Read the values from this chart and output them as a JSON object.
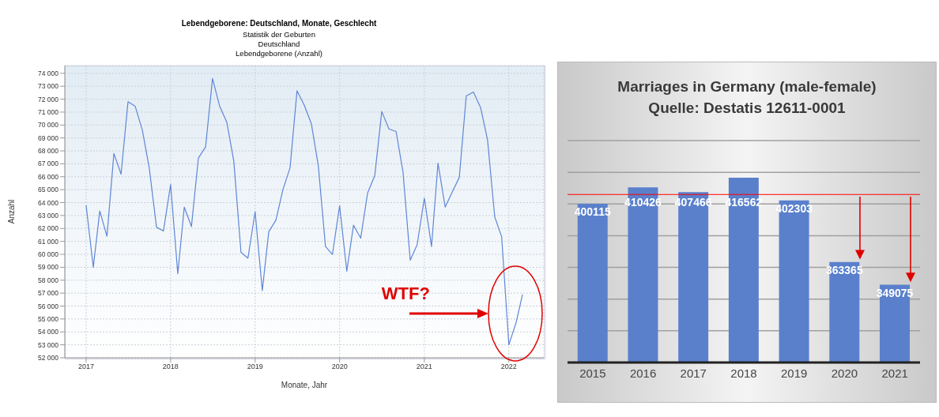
{
  "chart_data": [
    {
      "type": "line",
      "title": "Lebendgeborene: Deutschland, Monate, Geschlecht",
      "subtitle": "Statistik der Geburten\nDeutschland\nLebendgeborene (Anzahl)",
      "xlabel": "Monate, Jahr",
      "ylabel": "Anzahl",
      "x": [
        "2017-01",
        "2017-02",
        "2017-03",
        "2017-04",
        "2017-05",
        "2017-06",
        "2017-07",
        "2017-08",
        "2017-09",
        "2017-10",
        "2017-11",
        "2017-12",
        "2018-01",
        "2018-02",
        "2018-03",
        "2018-04",
        "2018-05",
        "2018-06",
        "2018-07",
        "2018-08",
        "2018-09",
        "2018-10",
        "2018-11",
        "2018-12",
        "2019-01",
        "2019-02",
        "2019-03",
        "2019-04",
        "2019-05",
        "2019-06",
        "2019-07",
        "2019-08",
        "2019-09",
        "2019-10",
        "2019-11",
        "2019-12",
        "2020-01",
        "2020-02",
        "2020-03",
        "2020-04",
        "2020-05",
        "2020-06",
        "2020-07",
        "2020-08",
        "2020-09",
        "2020-10",
        "2020-11",
        "2020-12",
        "2021-01",
        "2021-02",
        "2021-03",
        "2021-04",
        "2021-05",
        "2021-06",
        "2021-07",
        "2021-08",
        "2021-09",
        "2021-10",
        "2021-11",
        "2021-12",
        "2022-01",
        "2022-02",
        "2022-03"
      ],
      "series": [
        {
          "color": "#5f86d8",
          "values": [
            63800,
            59000,
            63350,
            61400,
            67800,
            66200,
            71800,
            71450,
            69600,
            66650,
            62100,
            61800,
            65400,
            58500,
            63650,
            62150,
            67450,
            68300,
            73600,
            71450,
            70200,
            67200,
            60150,
            59700,
            63300,
            57200,
            61750,
            62650,
            65000,
            66700,
            72650,
            71550,
            70100,
            66850,
            60600,
            60000,
            63750,
            58700,
            62250,
            61250,
            64750,
            66100,
            71050,
            69700,
            69500,
            66350,
            59550,
            60750,
            64350,
            60600,
            67050,
            63650,
            64800,
            65950,
            72250,
            72550,
            71350,
            68850,
            62900,
            61350,
            53000,
            54700,
            56900
          ]
        }
      ],
      "xlim": [
        "2016-10",
        "2022-06"
      ],
      "xticks": [
        {
          "value": "2017-01",
          "label": "2017"
        },
        {
          "value": "2018-01",
          "label": "2018"
        },
        {
          "value": "2019-01",
          "label": "2019"
        },
        {
          "value": "2020-01",
          "label": "2020"
        },
        {
          "value": "2021-01",
          "label": "2021"
        },
        {
          "value": "2022-01",
          "label": "2022"
        }
      ],
      "ylim": [
        52000,
        74600
      ],
      "yticks": [
        {
          "value": 52000,
          "label": "52 000"
        },
        {
          "value": 53000,
          "label": "53 000"
        },
        {
          "value": 54000,
          "label": "54 000"
        },
        {
          "value": 55000,
          "label": "55 000"
        },
        {
          "value": 56000,
          "label": "56 000"
        },
        {
          "value": 57000,
          "label": "57 000"
        },
        {
          "value": 58000,
          "label": "58 000"
        },
        {
          "value": 59000,
          "label": "59 000"
        },
        {
          "value": 60000,
          "label": "60 000"
        },
        {
          "value": 61000,
          "label": "61 000"
        },
        {
          "value": 62000,
          "label": "62 000"
        },
        {
          "value": 63000,
          "label": "63 000"
        },
        {
          "value": 64000,
          "label": "64 000"
        },
        {
          "value": 65000,
          "label": "65 000"
        },
        {
          "value": 66000,
          "label": "66 000"
        },
        {
          "value": 67000,
          "label": "67 000"
        },
        {
          "value": 68000,
          "label": "68 000"
        },
        {
          "value": 69000,
          "label": "69 000"
        },
        {
          "value": 70000,
          "label": "70 000"
        },
        {
          "value": 71000,
          "label": "71 000"
        },
        {
          "value": 72000,
          "label": "72 000"
        },
        {
          "value": 73000,
          "label": "73 000"
        },
        {
          "value": 74000,
          "label": "74 000"
        }
      ],
      "grid": true,
      "marker": "none",
      "line_style": "solid",
      "annotations": [
        "WTF?"
      ]
    },
    {
      "type": "bar",
      "title": "Marriages in Germany (male-female)",
      "subtitle": "Quelle: Destatis 12611-0001",
      "categories": [
        "2015",
        "2016",
        "2017",
        "2018",
        "2019",
        "2020",
        "2021"
      ],
      "values": [
        400115,
        410426,
        407466,
        416562,
        402303,
        363365,
        349075
      ],
      "color": "#5a80cc",
      "ylim": [
        300000,
        440000
      ],
      "yticks": [
        {
          "value": 300000,
          "label": null
        },
        {
          "value": 320000,
          "label": null
        },
        {
          "value": 340000,
          "label": null
        },
        {
          "value": 360000,
          "label": null
        },
        {
          "value": 380000,
          "label": null
        },
        {
          "value": 400000,
          "label": null
        },
        {
          "value": 420000,
          "label": null
        },
        {
          "value": 440000,
          "label": null
        }
      ],
      "tick_labels": "x",
      "grid": "y",
      "data_labels": true,
      "ref_lines": [
        {
          "axis": "y",
          "value": 406000,
          "color": "#ff0000"
        }
      ]
    }
  ]
}
